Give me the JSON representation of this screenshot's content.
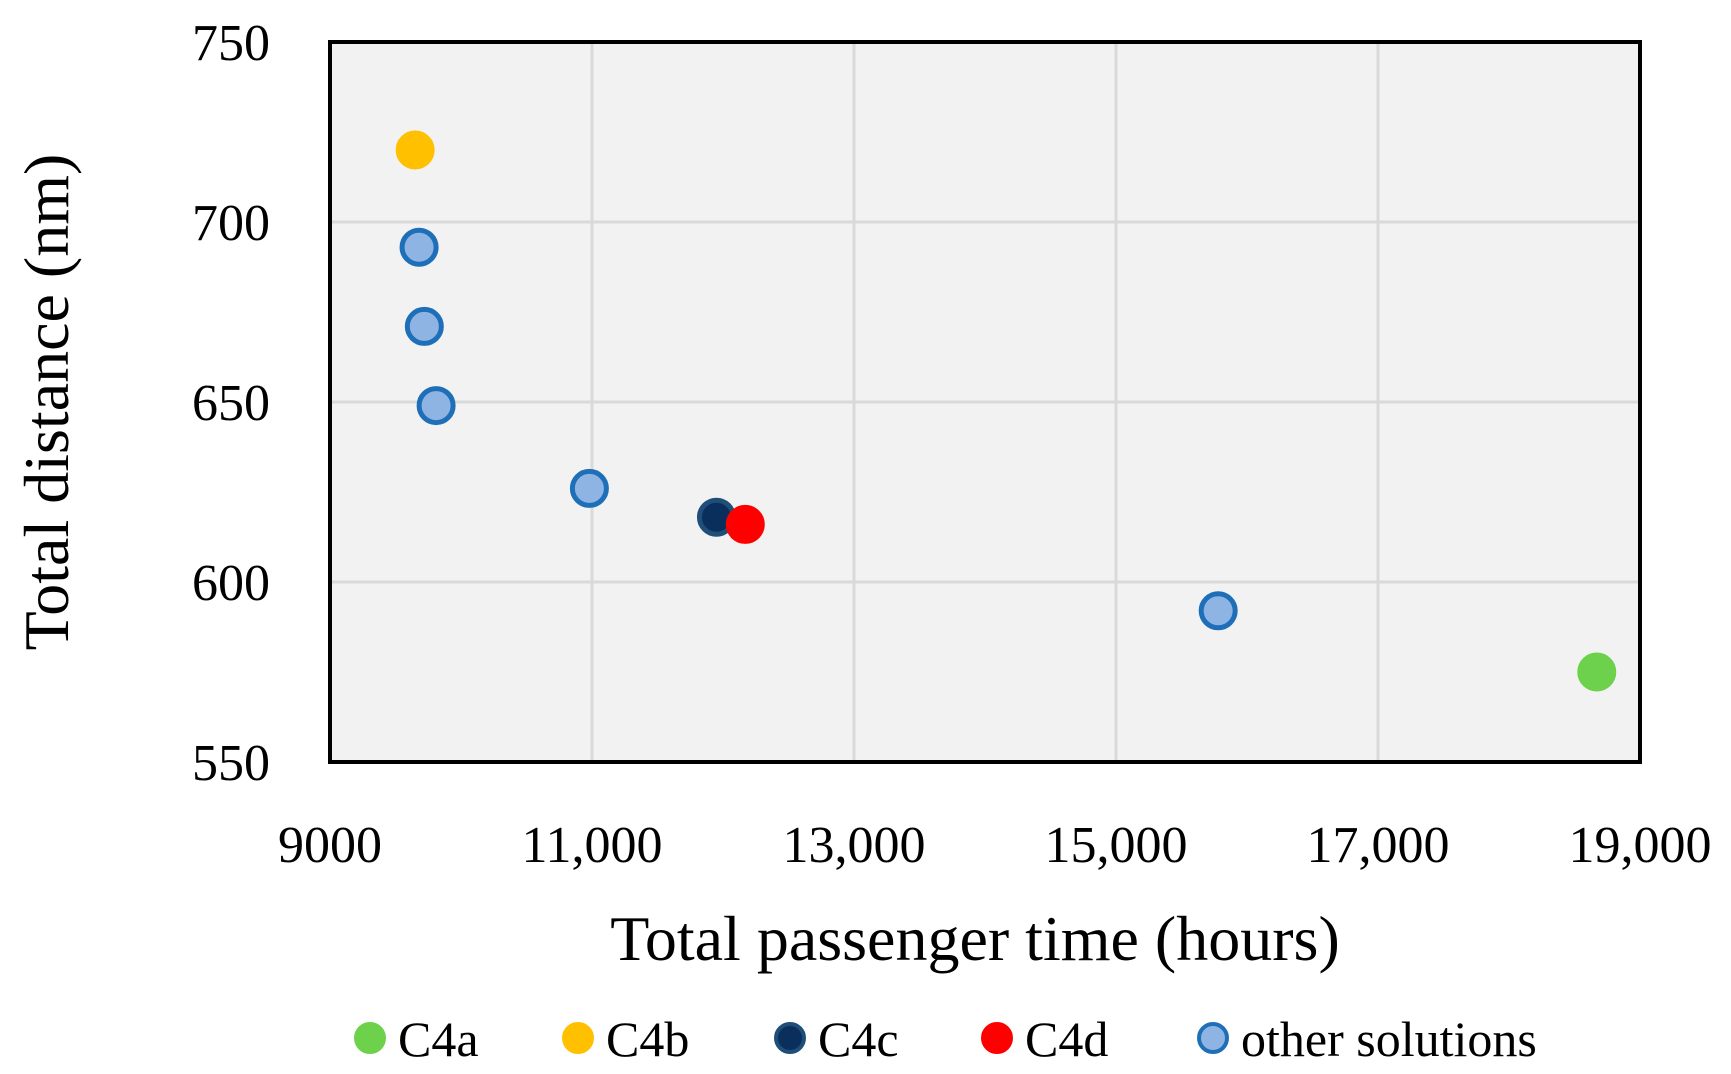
{
  "chart_data": {
    "type": "scatter",
    "title": "",
    "xlabel": "Total passenger time (hours)",
    "ylabel": "Total distance (nm)",
    "xlim": [
      9000,
      19000
    ],
    "ylim": [
      550,
      750
    ],
    "x_ticks": [
      9000,
      11000,
      13000,
      15000,
      17000,
      19000
    ],
    "x_tick_labels": [
      "9000",
      "11,000",
      "13,000",
      "15,000",
      "17,000",
      "19,000"
    ],
    "y_ticks": [
      550,
      600,
      650,
      700,
      750
    ],
    "y_tick_labels": [
      "550",
      "600",
      "650",
      "700",
      "750"
    ],
    "grid": true,
    "legend_position": "bottom",
    "plot_background": "#f2f2f2",
    "series": [
      {
        "name": "C4a",
        "color": "#6dd14b",
        "edge": "#6dd14b",
        "points": [
          {
            "x": 18670,
            "y": 575
          }
        ]
      },
      {
        "name": "C4b",
        "color": "#ffc000",
        "edge": "#ffc000",
        "points": [
          {
            "x": 9650,
            "y": 720
          }
        ]
      },
      {
        "name": "C4c",
        "color": "#0a2f5c",
        "edge": "#1f4e79",
        "points": [
          {
            "x": 11950,
            "y": 618
          }
        ]
      },
      {
        "name": "C4d",
        "color": "#ff0000",
        "edge": "#ff0000",
        "points": [
          {
            "x": 12170,
            "y": 616
          }
        ]
      },
      {
        "name": "other solutions",
        "color": "#8eb4e3",
        "edge": "#1f6fb8",
        "points": [
          {
            "x": 9680,
            "y": 693
          },
          {
            "x": 9720,
            "y": 671
          },
          {
            "x": 9810,
            "y": 649
          },
          {
            "x": 10980,
            "y": 626
          },
          {
            "x": 15780,
            "y": 592
          }
        ]
      }
    ]
  }
}
